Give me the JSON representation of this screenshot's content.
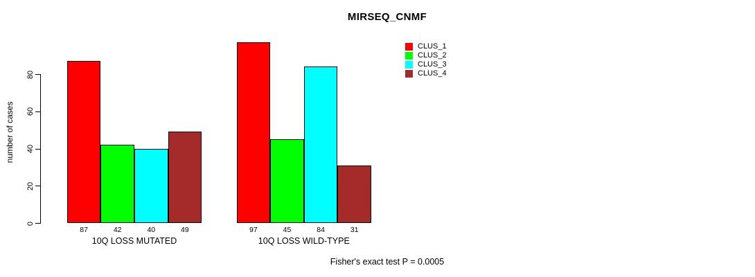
{
  "chart_data": {
    "type": "bar",
    "title": "MIRSEQ_CNMF",
    "ylabel": "number of cases",
    "xlabel": "",
    "ylim": [
      0,
      100
    ],
    "yticks": [
      0,
      20,
      40,
      60,
      80
    ],
    "grid": false,
    "legend_position": "top-right",
    "bar_value_labels_shown": true,
    "series": [
      {
        "name": "CLUS_1",
        "color": "#FF0000"
      },
      {
        "name": "CLUS_2",
        "color": "#00FF00"
      },
      {
        "name": "CLUS_3",
        "color": "#00FFFF"
      },
      {
        "name": "CLUS_4",
        "color": "#A52A2A"
      }
    ],
    "groups": [
      {
        "label": "10Q LOSS MUTATED",
        "values": [
          87,
          42,
          40,
          49
        ]
      },
      {
        "label": "10Q LOSS WILD-TYPE",
        "values": [
          97,
          45,
          84,
          31
        ]
      }
    ],
    "annotation": "Fisher's exact test P = 0.0005"
  },
  "colors": {
    "background": "#FFFFFF",
    "axis": "#000000",
    "bar_border": "#000000",
    "text": "#000000"
  }
}
